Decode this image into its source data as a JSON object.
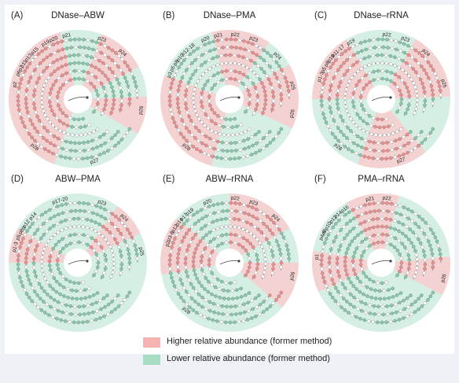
{
  "colors": {
    "higher": "#f6b3b2",
    "lower": "#a7dcc5",
    "node_higher": "#f08c8c",
    "node_lower": "#84c9a8",
    "node_neutral": "#ffffff"
  },
  "panels": [
    {
      "letter": "(A)",
      "title": "DNase–ABW",
      "labels": [
        {
          "text": "p19",
          "angle": -30
        },
        {
          "text": "p20",
          "angle": -22
        },
        {
          "text": "p21",
          "angle": -10
        },
        {
          "text": "p23",
          "angle": 22
        },
        {
          "text": "p24",
          "angle": 44
        },
        {
          "text": "p26",
          "angle": 100
        },
        {
          "text": "p27",
          "angle": 165
        },
        {
          "text": "p28",
          "angle": 222
        },
        {
          "text": "p2",
          "angle": 283
        },
        {
          "text": "p6p7",
          "angle": 296
        },
        {
          "text": "p11",
          "angle": 303
        },
        {
          "text": "p13",
          "angle": 310
        },
        {
          "text": "p15",
          "angle": 318
        }
      ],
      "sectors": [
        {
          "start": 255,
          "end": 345,
          "type": "higher"
        },
        {
          "start": 345,
          "end": 20,
          "type": "lower"
        },
        {
          "start": 20,
          "end": 62,
          "type": "higher"
        },
        {
          "start": 62,
          "end": 88,
          "type": "lower"
        },
        {
          "start": 88,
          "end": 120,
          "type": "higher"
        },
        {
          "start": 120,
          "end": 200,
          "type": "lower"
        },
        {
          "start": 200,
          "end": 255,
          "type": "higher"
        }
      ]
    },
    {
      "letter": "(B)",
      "title": "DNase–PMA",
      "labels": [
        {
          "text": "p20",
          "angle": -22
        },
        {
          "text": "p21",
          "angle": -10
        },
        {
          "text": "p22",
          "angle": 5
        },
        {
          "text": "p23",
          "angle": 22
        },
        {
          "text": "p24",
          "angle": 48
        },
        {
          "text": "p25",
          "angle": 78
        },
        {
          "text": "p26",
          "angle": 103
        },
        {
          "text": "p28",
          "angle": 222
        },
        {
          "text": "p3",
          "angle": 292
        },
        {
          "text": "p5",
          "angle": 298
        },
        {
          "text": "p8",
          "angle": 304
        },
        {
          "text": "p10",
          "angle": 310
        },
        {
          "text": "p12-18",
          "angle": 320
        }
      ],
      "sectors": [
        {
          "start": 250,
          "end": 290,
          "type": "higher"
        },
        {
          "start": 290,
          "end": 345,
          "type": "lower"
        },
        {
          "start": 345,
          "end": 35,
          "type": "higher"
        },
        {
          "start": 35,
          "end": 60,
          "type": "lower"
        },
        {
          "start": 60,
          "end": 115,
          "type": "higher"
        },
        {
          "start": 115,
          "end": 195,
          "type": "lower"
        },
        {
          "start": 195,
          "end": 250,
          "type": "higher"
        }
      ]
    },
    {
      "letter": "(C)",
      "title": "DNase–rRNA",
      "labels": [
        {
          "text": "p19",
          "angle": -28
        },
        {
          "text": "p22",
          "angle": 5
        },
        {
          "text": "p23",
          "angle": 22
        },
        {
          "text": "p24",
          "angle": 44
        },
        {
          "text": "p25",
          "angle": 76
        },
        {
          "text": "p27",
          "angle": 162
        },
        {
          "text": "p28",
          "angle": 222
        },
        {
          "text": "p1-3",
          "angle": 290
        },
        {
          "text": "p5",
          "angle": 297
        },
        {
          "text": "p8",
          "angle": 303
        },
        {
          "text": "p10",
          "angle": 309
        },
        {
          "text": "p11-17",
          "angle": 318
        }
      ],
      "sectors": [
        {
          "start": 270,
          "end": 330,
          "type": "higher"
        },
        {
          "start": 330,
          "end": 30,
          "type": "lower"
        },
        {
          "start": 30,
          "end": 88,
          "type": "higher"
        },
        {
          "start": 88,
          "end": 140,
          "type": "lower"
        },
        {
          "start": 140,
          "end": 200,
          "type": "higher"
        },
        {
          "start": 200,
          "end": 270,
          "type": "lower"
        }
      ]
    },
    {
      "letter": "(D)",
      "title": "ABW–PMA",
      "labels": [
        {
          "text": "p17-20",
          "angle": -16
        },
        {
          "text": "p23",
          "angle": 22
        },
        {
          "text": "p24",
          "angle": 46
        },
        {
          "text": "p25",
          "angle": 80
        },
        {
          "text": "p1-3",
          "angle": 284
        },
        {
          "text": "p5",
          "angle": 293
        },
        {
          "text": "p8p",
          "angle": 300
        },
        {
          "text": "p12",
          "angle": 307
        },
        {
          "text": "p14",
          "angle": 316
        }
      ],
      "sectors": [
        {
          "start": 270,
          "end": 300,
          "type": "higher"
        },
        {
          "start": 300,
          "end": 35,
          "type": "lower"
        },
        {
          "start": 35,
          "end": 65,
          "type": "higher"
        },
        {
          "start": 65,
          "end": 95,
          "type": "lower"
        },
        {
          "start": 95,
          "end": 270,
          "type": "lower"
        }
      ]
    },
    {
      "letter": "(E)",
      "title": "ABW–rRNA",
      "labels": [
        {
          "text": "p20",
          "angle": -20
        },
        {
          "text": "p22",
          "angle": 5
        },
        {
          "text": "p23",
          "angle": 22
        },
        {
          "text": "p24",
          "angle": 46
        },
        {
          "text": "p26",
          "angle": 102
        },
        {
          "text": "p28",
          "angle": 222
        },
        {
          "text": "p2",
          "angle": 287
        },
        {
          "text": "p3-8",
          "angle": 294
        },
        {
          "text": "p12",
          "angle": 302
        },
        {
          "text": "p14",
          "angle": 309
        },
        {
          "text": "p17",
          "angle": 315
        },
        {
          "text": "p19",
          "angle": 322
        }
      ],
      "sectors": [
        {
          "start": 260,
          "end": 310,
          "type": "higher"
        },
        {
          "start": 310,
          "end": 0,
          "type": "lower"
        },
        {
          "start": 0,
          "end": 60,
          "type": "higher"
        },
        {
          "start": 60,
          "end": 90,
          "type": "lower"
        },
        {
          "start": 90,
          "end": 130,
          "type": "higher"
        },
        {
          "start": 130,
          "end": 260,
          "type": "lower"
        }
      ]
    },
    {
      "letter": "(F)",
      "title": "PMA–rRNA",
      "labels": [
        {
          "text": "p21",
          "angle": -10
        },
        {
          "text": "p22",
          "angle": 5
        },
        {
          "text": "p26",
          "angle": 104
        },
        {
          "text": "p1",
          "angle": 275
        },
        {
          "text": "p4-6",
          "angle": 295
        },
        {
          "text": "p8p10",
          "angle": 302
        },
        {
          "text": "p12",
          "angle": 312
        },
        {
          "text": "p14p16",
          "angle": 322
        }
      ],
      "sectors": [
        {
          "start": 245,
          "end": 280,
          "type": "higher"
        },
        {
          "start": 280,
          "end": 330,
          "type": "lower"
        },
        {
          "start": 330,
          "end": 15,
          "type": "higher"
        },
        {
          "start": 15,
          "end": 85,
          "type": "lower"
        },
        {
          "start": 85,
          "end": 118,
          "type": "higher"
        },
        {
          "start": 118,
          "end": 245,
          "type": "lower"
        }
      ]
    }
  ],
  "legend": {
    "higher_label": "Higher relative abundance (former method)",
    "lower_label": "Lower relative abundance (former method)"
  }
}
